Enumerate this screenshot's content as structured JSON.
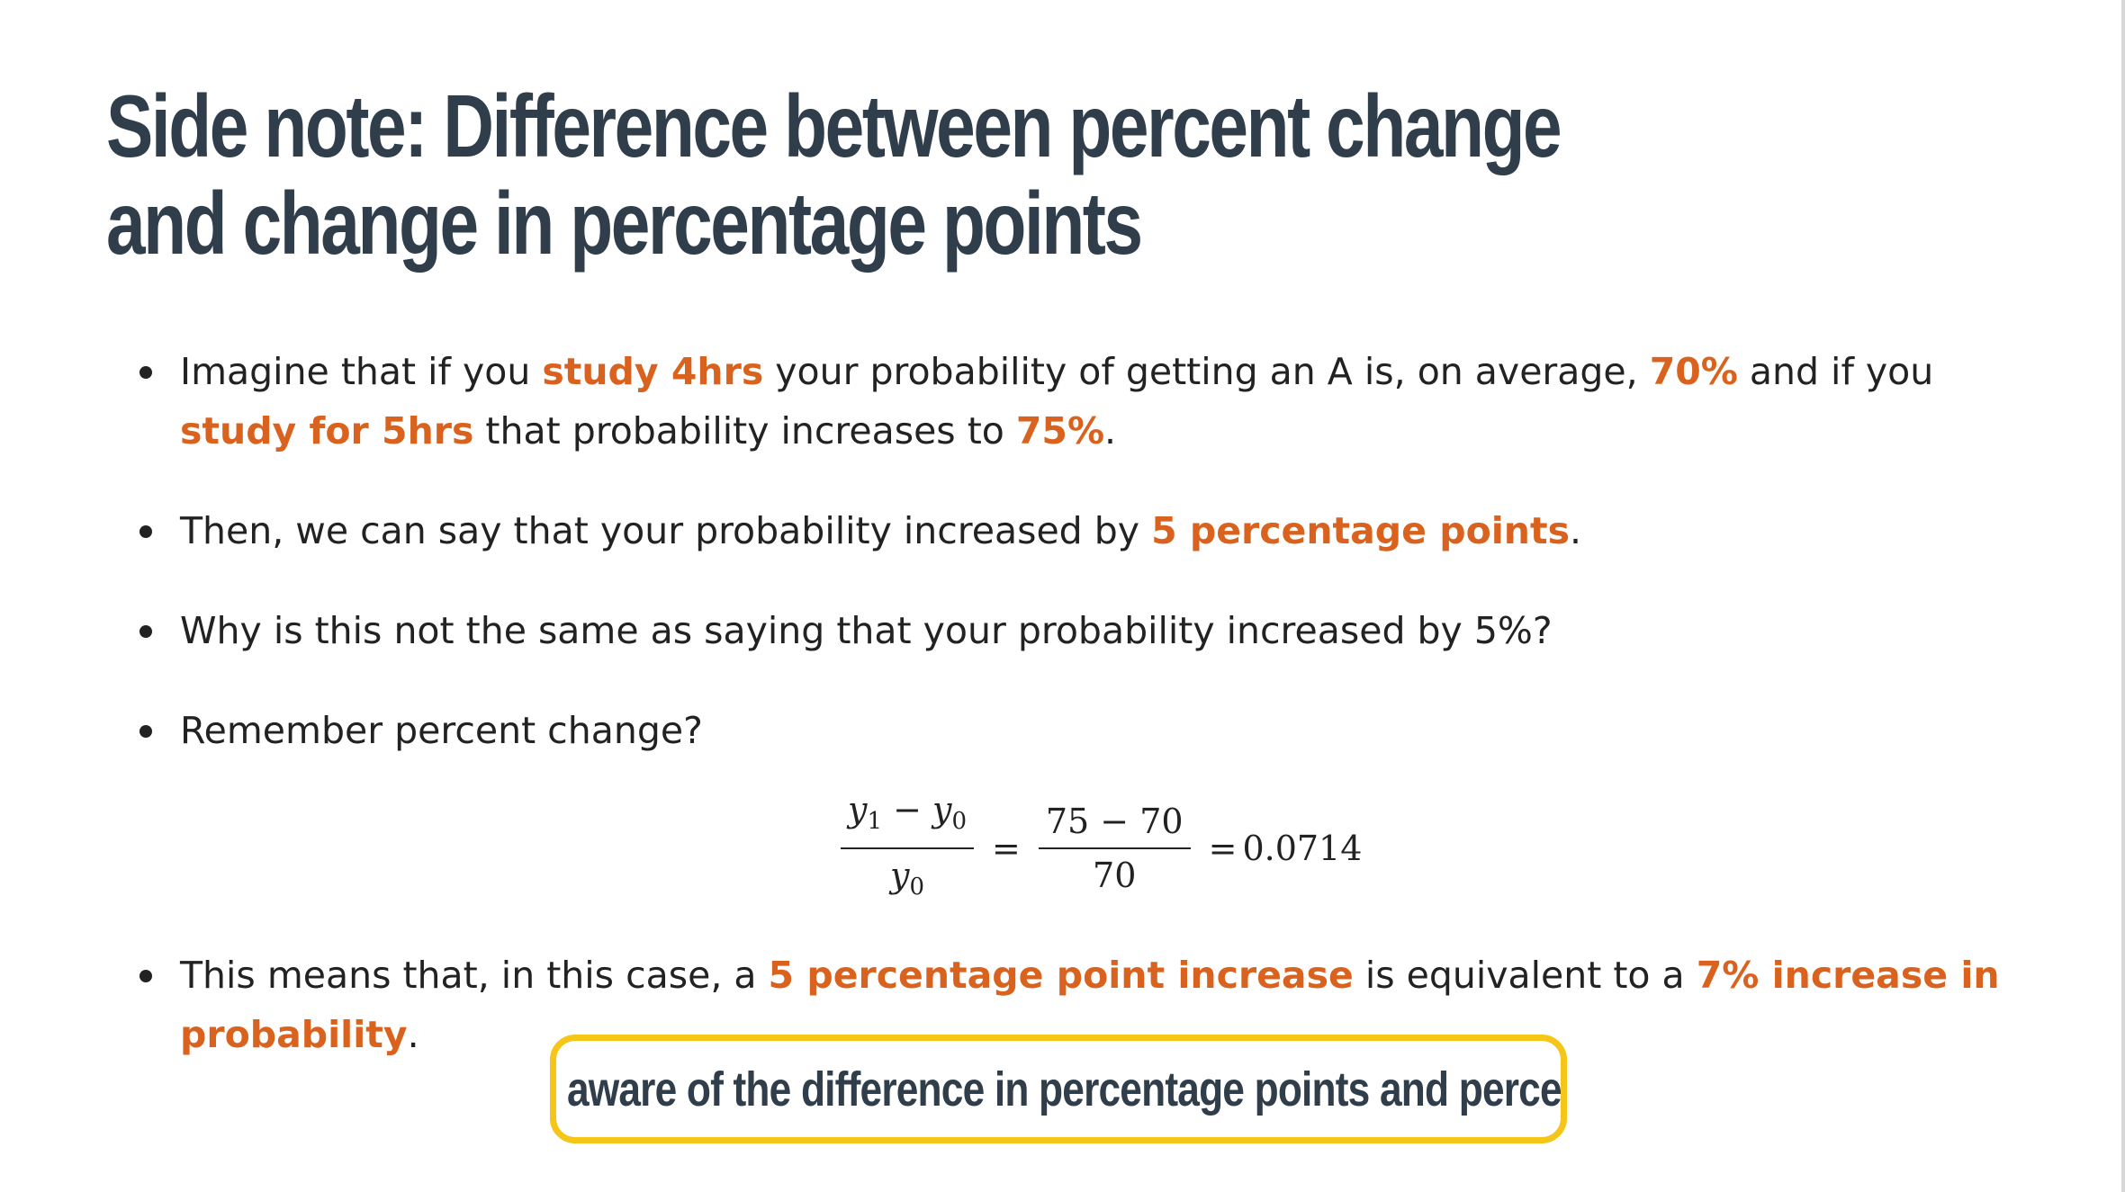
{
  "title": "Side note: Difference between percent change and change in percentage points",
  "bullets": {
    "b1": {
      "t1": "Imagine that if you ",
      "h1": "study 4hrs",
      "t2": " your probability of getting an A is, on average, ",
      "h2": "70%",
      "t3": " and if you ",
      "h3": "study for 5hrs",
      "t4": " that probability increases to ",
      "h4": "75%",
      "t5": "."
    },
    "b2": {
      "t1": "Then, we can say that your probability increased by ",
      "h1": "5 percentage points",
      "t2": "."
    },
    "b3": {
      "t1": "Why is this not the same as saying that your probability increased by 5%?"
    },
    "b4": {
      "t1": "Remember percent change?"
    },
    "b5": {
      "t1": "This means that, in this case, a ",
      "h1": "5 percentage point increase",
      "t2": " is equivalent to a ",
      "h2": "7% increase in probability",
      "t3": "."
    }
  },
  "equation": {
    "frac1_num_var_a": "y",
    "frac1_num_sub_a": "1",
    "frac1_num_minus": " − ",
    "frac1_num_var_b": "y",
    "frac1_num_sub_b": "0",
    "frac1_den_var": "y",
    "frac1_den_sub": "0",
    "equals1": "=",
    "frac2_num": "75 − 70",
    "frac2_den": "70",
    "equals2": "=",
    "result": "0.0714"
  },
  "callout": {
    "text": "Be aware of the difference in percentage points and percent!"
  },
  "colors": {
    "highlight": "#d9631e",
    "title": "#2f3e4a",
    "callout_border": "#f5c518"
  }
}
